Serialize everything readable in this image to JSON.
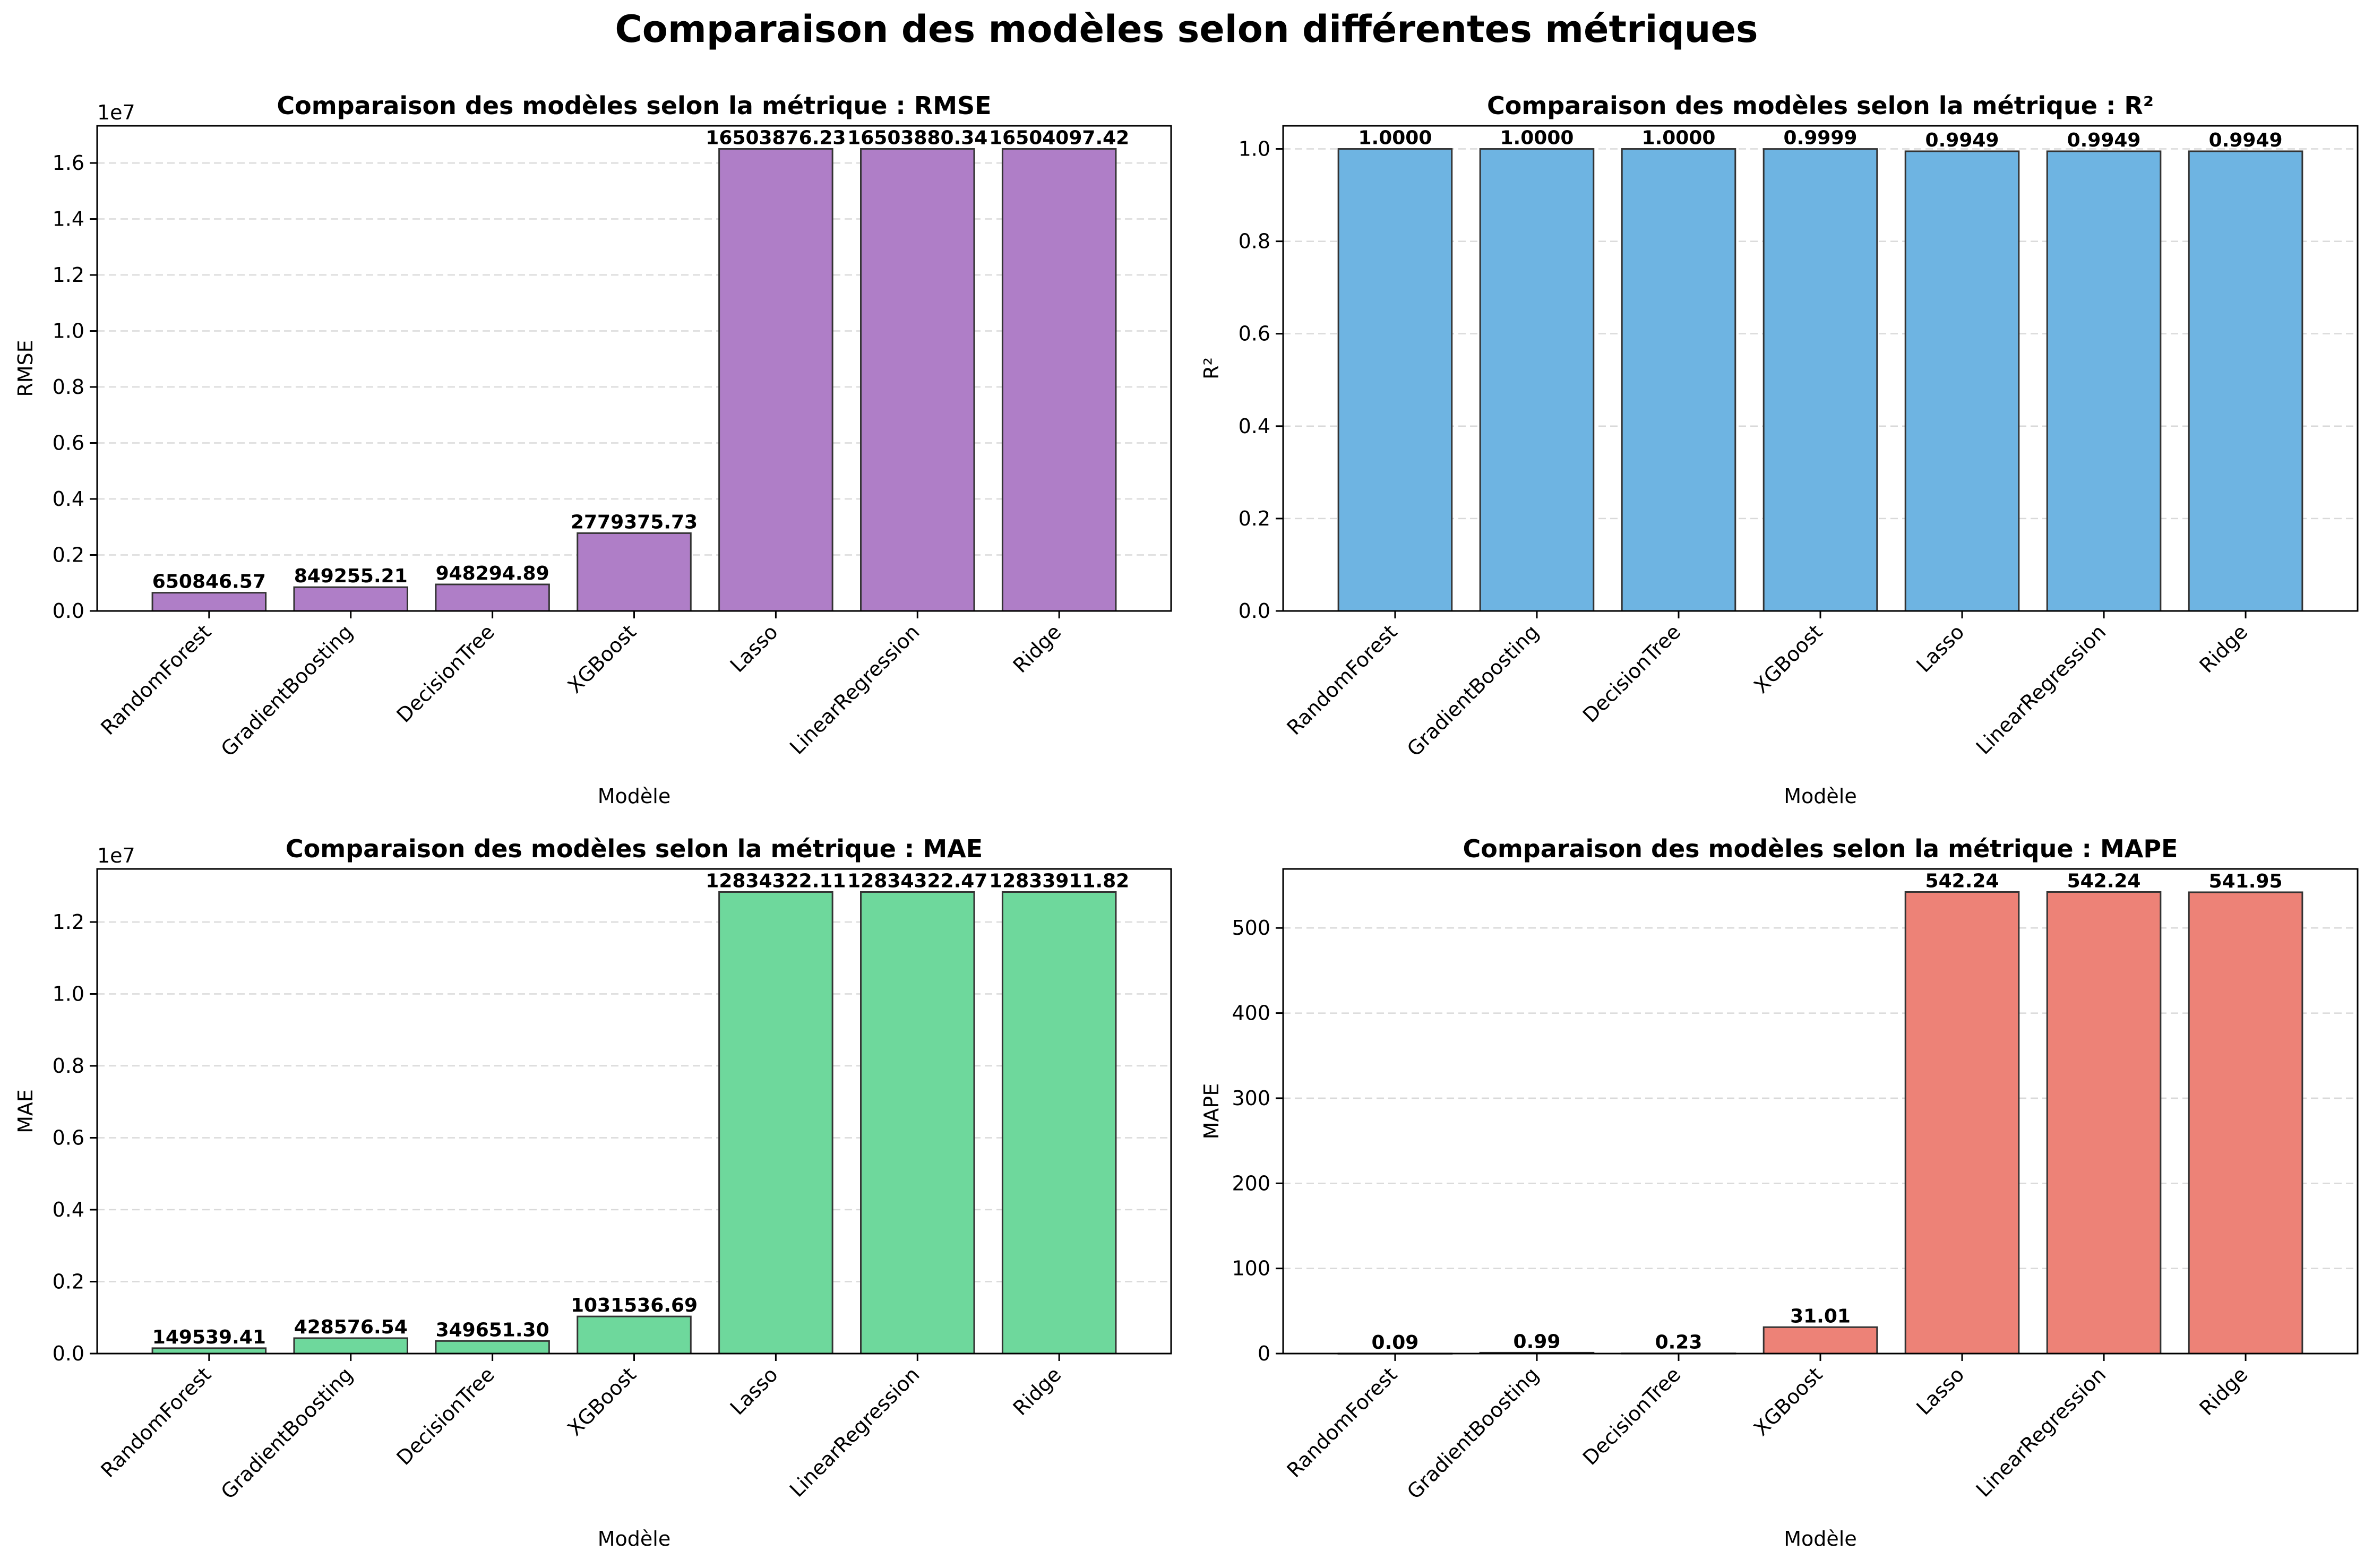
{
  "suptitle": "Comparaison des modèles selon différentes métriques",
  "chart_data": [
    {
      "type": "bar",
      "title": "Comparaison des modèles selon la métrique : RMSE",
      "xlabel": "Modèle",
      "ylabel": "RMSE",
      "categories": [
        "RandomForest",
        "GradientBoosting",
        "DecisionTree",
        "XGBoost",
        "Lasso",
        "LinearRegression",
        "Ridge"
      ],
      "values": [
        650846.57,
        849255.21,
        948294.89,
        2779375.73,
        16503876.23,
        16503880.34,
        16504097.42
      ],
      "value_labels": [
        "650846.57",
        "849255.21",
        "948294.89",
        "2779375.73",
        "16503876.23",
        "16503880.34",
        "16504097.42"
      ],
      "ylim": [
        0,
        17328302
      ],
      "yticks": [
        0,
        2000000,
        4000000,
        6000000,
        8000000,
        10000000,
        12000000,
        14000000,
        16000000
      ],
      "ytick_labels": [
        "0.0",
        "0.2",
        "0.4",
        "0.6",
        "0.8",
        "1.0",
        "1.2",
        "1.4",
        "1.6"
      ],
      "offset_text": "1e7",
      "color": "#af7ec7",
      "grid": "y dashed"
    },
    {
      "type": "bar",
      "title": "Comparaison des modèles selon la métrique : R²",
      "xlabel": "Modèle",
      "ylabel": "R²",
      "categories": [
        "RandomForest",
        "GradientBoosting",
        "DecisionTree",
        "XGBoost",
        "Lasso",
        "LinearRegression",
        "Ridge"
      ],
      "values": [
        1.0,
        1.0,
        1.0,
        0.9999,
        0.9949,
        0.9949,
        0.9949
      ],
      "value_labels": [
        "1.0000",
        "1.0000",
        "1.0000",
        "0.9999",
        "0.9949",
        "0.9949",
        "0.9949"
      ],
      "ylim": [
        0,
        1.05
      ],
      "yticks": [
        0,
        0.2,
        0.4,
        0.6,
        0.8,
        1.0
      ],
      "ytick_labels": [
        "0.0",
        "0.2",
        "0.4",
        "0.6",
        "0.8",
        "1.0"
      ],
      "offset_text": "",
      "color": "#6eb4e2",
      "grid": "y dashed"
    },
    {
      "type": "bar",
      "title": "Comparaison des modèles selon la métrique : MAE",
      "xlabel": "Modèle",
      "ylabel": "MAE",
      "categories": [
        "RandomForest",
        "GradientBoosting",
        "DecisionTree",
        "XGBoost",
        "Lasso",
        "LinearRegression",
        "Ridge"
      ],
      "values": [
        149539.41,
        428576.54,
        349651.3,
        1031536.69,
        12834322.11,
        12834322.47,
        12833911.82
      ],
      "value_labels": [
        "149539.41",
        "428576.54",
        "349651.30",
        "1031536.69",
        "12834322.11",
        "12834322.47",
        "12833911.82"
      ],
      "ylim": [
        0,
        13476038
      ],
      "yticks": [
        0,
        2000000,
        4000000,
        6000000,
        8000000,
        10000000,
        12000000
      ],
      "ytick_labels": [
        "0.0",
        "0.2",
        "0.4",
        "0.6",
        "0.8",
        "1.0",
        "1.2"
      ],
      "offset_text": "1e7",
      "color": "#6ed89c",
      "grid": "y dashed"
    },
    {
      "type": "bar",
      "title": "Comparaison des modèles selon la métrique : MAPE",
      "xlabel": "Modèle",
      "ylabel": "MAPE",
      "categories": [
        "RandomForest",
        "GradientBoosting",
        "DecisionTree",
        "XGBoost",
        "Lasso",
        "LinearRegression",
        "Ridge"
      ],
      "values": [
        0.09,
        0.99,
        0.23,
        31.01,
        542.24,
        542.24,
        541.95
      ],
      "value_labels": [
        "0.09",
        "0.99",
        "0.23",
        "31.01",
        "542.24",
        "542.24",
        "541.95"
      ],
      "ylim": [
        0,
        569.35
      ],
      "yticks": [
        0,
        100,
        200,
        300,
        400,
        500
      ],
      "ytick_labels": [
        "0",
        "100",
        "200",
        "300",
        "400",
        "500"
      ],
      "offset_text": "",
      "color": "#ed8277",
      "grid": "y dashed"
    }
  ]
}
